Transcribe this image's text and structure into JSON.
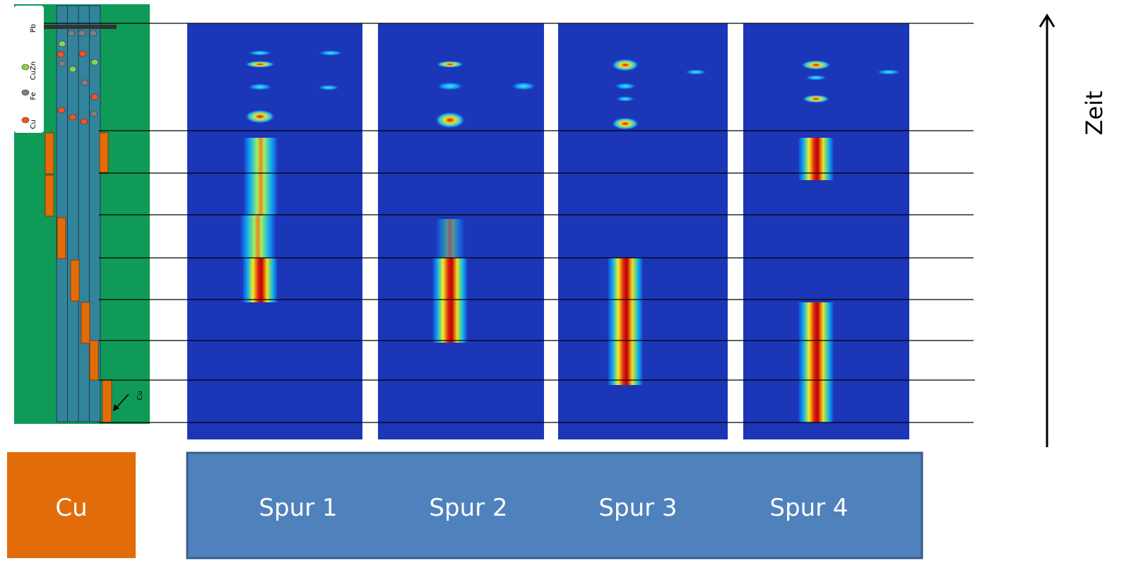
{
  "legend": {
    "items": [
      "Pb",
      "CuZn",
      "Fe",
      "Cu"
    ]
  },
  "diagram": {
    "arrow_label": "Cu"
  },
  "element_box": {
    "label": "Cu"
  },
  "tracks": [
    "Spur 1",
    "Spur 2",
    "Spur 3",
    "Spur 4"
  ],
  "axis_label": "Zeit"
}
